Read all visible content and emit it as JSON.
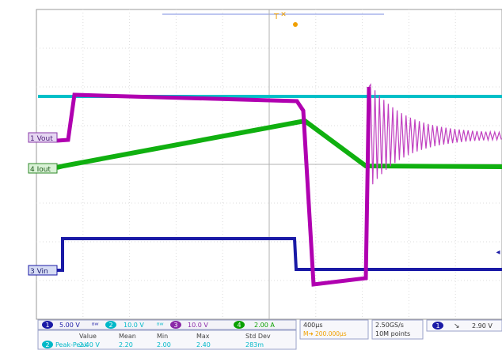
{
  "title": "",
  "channels": {
    "ch1": {
      "number": "1",
      "label": "Vout",
      "scale": "5.00 V",
      "color": "#6a0dad"
    },
    "ch2": {
      "number": "2",
      "label": "",
      "scale": "10.0 V",
      "color": "#00b8c8"
    },
    "ch3": {
      "number": "3",
      "label": "Vin",
      "scale": "10.0 V",
      "color": "#1a1aa6"
    },
    "ch4": {
      "number": "4",
      "label": "Iout",
      "scale": "2.00 A",
      "color": "#0aa000"
    }
  },
  "channel_markers": {
    "vout": "1 Vout",
    "iout": "4 Iout",
    "vin": "3 Vin"
  },
  "timebase": {
    "horizontal": "400µs",
    "delay": "200.000µs",
    "sample_rate": "2.50GS/s",
    "record_length": "10M points"
  },
  "trigger": {
    "source": "1",
    "slope": "falling-edge-icon",
    "level": "2.90 V",
    "marker": "T"
  },
  "measurements": {
    "headers": [
      "Value",
      "Mean",
      "Min",
      "Max",
      "Std Dev"
    ],
    "rows": [
      {
        "channel": "2",
        "type": "Peak-Peak",
        "value": "2.40 V",
        "mean": "2.20",
        "min": "2.00",
        "max": "2.40",
        "stddev": "283m"
      }
    ]
  },
  "colors": {
    "graticule_bg": "#ffffff",
    "grid": "#c8c8c8",
    "ch1": "#b000b0",
    "ch2": "#00c0c8",
    "ch3": "#1a1aa6",
    "ch4": "#10b010",
    "trigger": "#f0a000"
  }
}
